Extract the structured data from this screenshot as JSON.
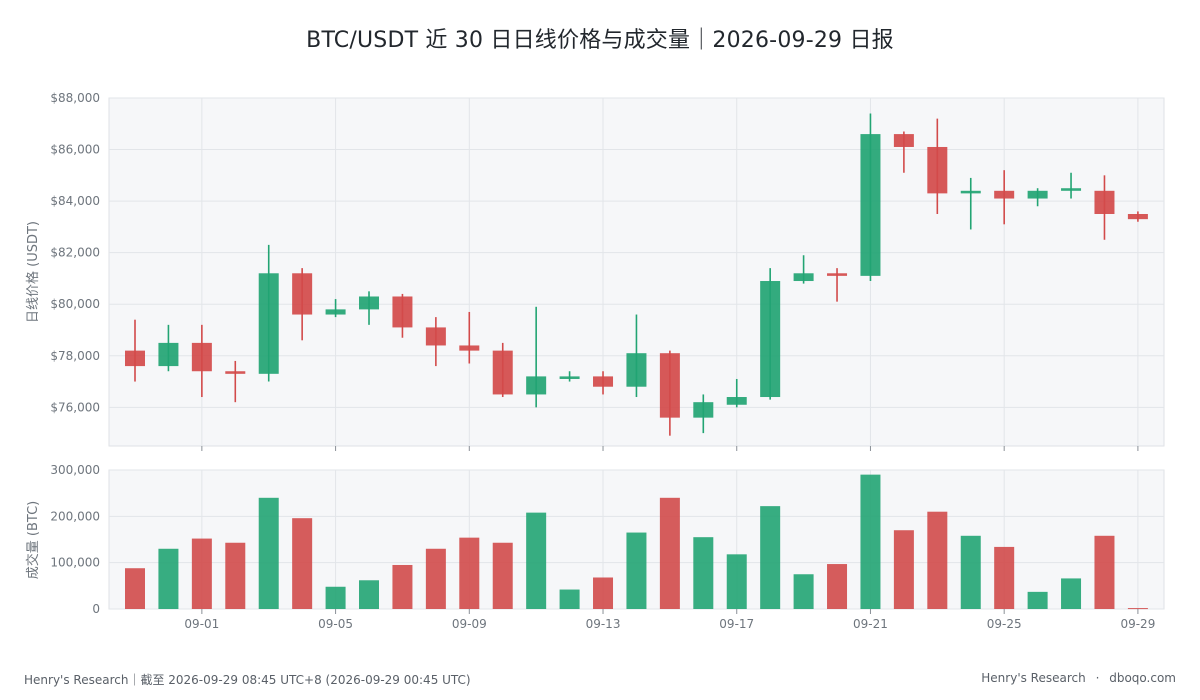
{
  "title": "BTC/USDT 近 30 日日线价格与成交量｜2026-09-29 日报",
  "footer": {
    "left": "Henry's Research｜截至 2026-09-29 08:45 UTC+8 (2026-09-29 00:45 UTC)",
    "right_brand": "Henry's Research",
    "separator": "·",
    "right_site": "dboqo.com"
  },
  "colors": {
    "up": "#22a473",
    "down": "#d24a4a",
    "grid": "#e2e5e9",
    "panel_bg": "#f6f7f9"
  },
  "chart_data": [
    {
      "type": "candlestick",
      "ylabel": "日线价格 (USDT)",
      "ylim": [
        74500,
        88000
      ],
      "yticks": [
        76000,
        78000,
        80000,
        82000,
        84000,
        86000,
        88000
      ],
      "ytick_labels": [
        "$76,000",
        "$78,000",
        "$80,000",
        "$82,000",
        "$84,000",
        "$86,000",
        "$88,000"
      ],
      "grid": true,
      "x_dates": [
        "08-30",
        "08-31",
        "09-01",
        "09-02",
        "09-03",
        "09-04",
        "09-05",
        "09-06",
        "09-07",
        "09-08",
        "09-09",
        "09-10",
        "09-11",
        "09-12",
        "09-13",
        "09-14",
        "09-15",
        "09-16",
        "09-17",
        "09-18",
        "09-19",
        "09-20",
        "09-21",
        "09-22",
        "09-23",
        "09-24",
        "09-25",
        "09-26",
        "09-27",
        "09-28",
        "09-29"
      ],
      "xtick_labels": [
        "09-01",
        "09-05",
        "09-09",
        "09-13",
        "09-17",
        "09-21",
        "09-25",
        "09-29"
      ],
      "xtick_index": [
        2,
        6,
        10,
        14,
        18,
        22,
        26,
        30
      ],
      "candles": [
        {
          "o": 78200,
          "h": 79400,
          "l": 77000,
          "c": 77600
        },
        {
          "o": 77600,
          "h": 79200,
          "l": 77400,
          "c": 78500
        },
        {
          "o": 78500,
          "h": 79200,
          "l": 76400,
          "c": 77400
        },
        {
          "o": 77400,
          "h": 77800,
          "l": 76200,
          "c": 77300
        },
        {
          "o": 77300,
          "h": 82300,
          "l": 77000,
          "c": 81200
        },
        {
          "o": 81200,
          "h": 81400,
          "l": 78600,
          "c": 79600
        },
        {
          "o": 79600,
          "h": 80200,
          "l": 79500,
          "c": 79800
        },
        {
          "o": 79800,
          "h": 80500,
          "l": 79200,
          "c": 80300
        },
        {
          "o": 80300,
          "h": 80400,
          "l": 78700,
          "c": 79100
        },
        {
          "o": 79100,
          "h": 79500,
          "l": 77600,
          "c": 78400
        },
        {
          "o": 78400,
          "h": 79700,
          "l": 77700,
          "c": 78200
        },
        {
          "o": 78200,
          "h": 78500,
          "l": 76400,
          "c": 76500
        },
        {
          "o": 76500,
          "h": 79900,
          "l": 76000,
          "c": 77200
        },
        {
          "o": 77100,
          "h": 77400,
          "l": 77000,
          "c": 77200
        },
        {
          "o": 77200,
          "h": 77400,
          "l": 76500,
          "c": 76800
        },
        {
          "o": 76800,
          "h": 79600,
          "l": 76400,
          "c": 78100
        },
        {
          "o": 78100,
          "h": 78200,
          "l": 74900,
          "c": 75600
        },
        {
          "o": 75600,
          "h": 76500,
          "l": 75000,
          "c": 76200
        },
        {
          "o": 76100,
          "h": 77100,
          "l": 76000,
          "c": 76400
        },
        {
          "o": 76400,
          "h": 81400,
          "l": 76300,
          "c": 80900
        },
        {
          "o": 80900,
          "h": 81900,
          "l": 80800,
          "c": 81200
        },
        {
          "o": 81200,
          "h": 81400,
          "l": 80100,
          "c": 81100
        },
        {
          "o": 81100,
          "h": 87400,
          "l": 80900,
          "c": 86600
        },
        {
          "o": 86600,
          "h": 86700,
          "l": 85100,
          "c": 86100
        },
        {
          "o": 86100,
          "h": 87200,
          "l": 83500,
          "c": 84300
        },
        {
          "o": 84300,
          "h": 84900,
          "l": 82900,
          "c": 84400
        },
        {
          "o": 84400,
          "h": 85200,
          "l": 83100,
          "c": 84100
        },
        {
          "o": 84100,
          "h": 84500,
          "l": 83800,
          "c": 84400
        },
        {
          "o": 84400,
          "h": 85100,
          "l": 84100,
          "c": 84500
        },
        {
          "o": 84400,
          "h": 85000,
          "l": 82500,
          "c": 83500
        },
        {
          "o": 83500,
          "h": 83600,
          "l": 83200,
          "c": 83300
        }
      ]
    },
    {
      "type": "bar",
      "ylabel": "成交量 (BTC)",
      "ylim": [
        0,
        300000
      ],
      "yticks": [
        0,
        100000,
        200000,
        300000
      ],
      "ytick_labels": [
        "0",
        "100,000",
        "200,000",
        "300,000"
      ],
      "grid": true,
      "values": [
        88000,
        130000,
        152000,
        143000,
        240000,
        196000,
        48000,
        62000,
        95000,
        130000,
        154000,
        143000,
        208000,
        42000,
        68000,
        165000,
        240000,
        155000,
        118000,
        222000,
        75000,
        97000,
        290000,
        170000,
        210000,
        158000,
        134000,
        37000,
        66000,
        158000,
        2000
      ]
    }
  ]
}
